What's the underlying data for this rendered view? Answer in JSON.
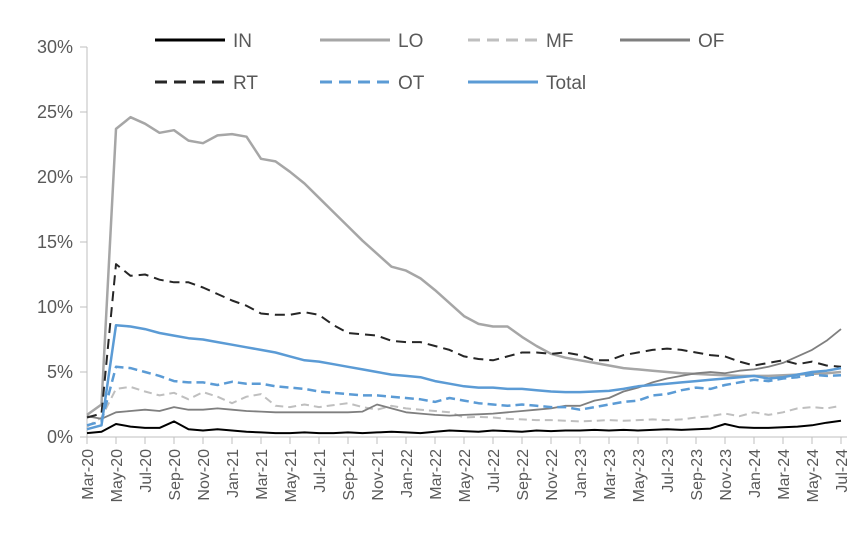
{
  "chart_data": {
    "type": "line",
    "title": "",
    "background": "#ffffff",
    "axis_text_color": "#595959",
    "axis_line_color": "#BFBFBF",
    "y_axis": {
      "min": 0,
      "max": 30,
      "step": 5,
      "unit": "%",
      "tick_labels": [
        "0%",
        "5%",
        "10%",
        "15%",
        "20%",
        "25%",
        "30%"
      ]
    },
    "x_axis": {
      "categories": [
        "Mar-20",
        "Apr-20",
        "May-20",
        "Jun-20",
        "Jul-20",
        "Aug-20",
        "Sep-20",
        "Oct-20",
        "Nov-20",
        "Dec-20",
        "Jan-21",
        "Feb-21",
        "Mar-21",
        "Apr-21",
        "May-21",
        "Jun-21",
        "Jul-21",
        "Aug-21",
        "Sep-21",
        "Oct-21",
        "Nov-21",
        "Dec-21",
        "Jan-22",
        "Feb-22",
        "Mar-22",
        "Apr-22",
        "May-22",
        "Jun-22",
        "Jul-22",
        "Aug-22",
        "Sep-22",
        "Oct-22",
        "Nov-22",
        "Dec-22",
        "Jan-23",
        "Feb-23",
        "Mar-23",
        "Apr-23",
        "May-23",
        "Jun-23",
        "Jul-23",
        "Aug-23",
        "Sep-23",
        "Oct-23",
        "Nov-23",
        "Dec-23",
        "Jan-24",
        "Feb-24",
        "Mar-24",
        "Apr-24",
        "May-24",
        "Jun-24",
        "Jul-24"
      ],
      "shown_tick_labels": [
        "Mar-20",
        "May-20",
        "Jul-20",
        "Sep-20",
        "Nov-20",
        "Jan-21",
        "Mar-21",
        "May-21",
        "Jul-21",
        "Sep-21",
        "Nov-21",
        "Jan-22",
        "Mar-22",
        "May-22",
        "Jul-22",
        "Sep-22",
        "Nov-22",
        "Jan-23",
        "Mar-23",
        "May-23",
        "Jul-23",
        "Sep-23",
        "Nov-23",
        "Jan-24",
        "Mar-24",
        "May-24",
        "Jul-24"
      ],
      "label_rotation_degrees": -90
    },
    "legend": {
      "position": "top",
      "rows": [
        [
          "IN",
          "LO",
          "MF",
          "OF"
        ],
        [
          "RT",
          "OT",
          "Total"
        ]
      ]
    },
    "series": [
      {
        "name": "IN",
        "color": "#000000",
        "dash": "solid",
        "width": 2,
        "values": [
          0.3,
          0.4,
          1.0,
          0.8,
          0.7,
          0.7,
          1.2,
          0.6,
          0.5,
          0.6,
          0.5,
          0.4,
          0.35,
          0.3,
          0.3,
          0.35,
          0.3,
          0.3,
          0.35,
          0.3,
          0.35,
          0.4,
          0.35,
          0.3,
          0.4,
          0.5,
          0.45,
          0.4,
          0.5,
          0.45,
          0.4,
          0.5,
          0.45,
          0.5,
          0.5,
          0.55,
          0.5,
          0.55,
          0.5,
          0.55,
          0.6,
          0.55,
          0.6,
          0.65,
          1.0,
          0.75,
          0.7,
          0.7,
          0.75,
          0.8,
          0.9,
          1.1,
          1.25
        ]
      },
      {
        "name": "LO",
        "color": "#A6A6A6",
        "dash": "solid",
        "width": 2.5,
        "values": [
          1.7,
          2.5,
          23.7,
          24.6,
          24.1,
          23.4,
          23.6,
          22.8,
          22.6,
          23.2,
          23.3,
          23.1,
          21.4,
          21.2,
          20.4,
          19.5,
          18.4,
          17.3,
          16.2,
          15.1,
          14.1,
          13.1,
          12.8,
          12.2,
          11.3,
          10.3,
          9.3,
          8.7,
          8.5,
          8.5,
          7.7,
          7.0,
          6.4,
          6.1,
          5.9,
          5.7,
          5.5,
          5.3,
          5.2,
          5.1,
          5.0,
          4.9,
          4.85,
          4.8,
          4.75,
          4.7,
          4.7,
          4.7,
          4.75,
          4.8,
          4.85,
          4.9,
          5.0
        ]
      },
      {
        "name": "MF",
        "color": "#BFBFBF",
        "dash": "dashed",
        "width": 2,
        "values": [
          0.8,
          1.5,
          3.7,
          3.85,
          3.5,
          3.2,
          3.4,
          2.9,
          3.45,
          3.1,
          2.6,
          3.1,
          3.3,
          2.4,
          2.3,
          2.5,
          2.3,
          2.45,
          2.6,
          2.3,
          2.1,
          2.4,
          2.2,
          2.1,
          2.0,
          1.9,
          1.5,
          1.55,
          1.5,
          1.4,
          1.35,
          1.3,
          1.3,
          1.25,
          1.2,
          1.25,
          1.3,
          1.25,
          1.3,
          1.35,
          1.3,
          1.35,
          1.5,
          1.6,
          1.8,
          1.6,
          1.9,
          1.7,
          1.9,
          2.2,
          2.3,
          2.2,
          2.4
        ]
      },
      {
        "name": "OF",
        "color": "#7F7F7F",
        "dash": "solid",
        "width": 1.8,
        "values": [
          1.6,
          1.4,
          1.9,
          2.0,
          2.1,
          2.0,
          2.3,
          2.1,
          2.1,
          2.2,
          2.1,
          2.0,
          1.95,
          1.9,
          1.9,
          1.9,
          1.9,
          1.9,
          1.9,
          1.95,
          2.5,
          2.2,
          1.9,
          1.8,
          1.7,
          1.65,
          1.7,
          1.75,
          1.8,
          1.9,
          2.0,
          2.1,
          2.2,
          2.4,
          2.4,
          2.8,
          3.0,
          3.5,
          3.8,
          4.2,
          4.5,
          4.7,
          4.9,
          5.0,
          4.9,
          5.1,
          5.2,
          5.4,
          5.7,
          6.2,
          6.7,
          7.4,
          8.3
        ]
      },
      {
        "name": "RT",
        "color": "#262626",
        "dash": "dashed",
        "width": 2,
        "values": [
          1.5,
          1.8,
          13.3,
          12.4,
          12.5,
          12.1,
          11.9,
          11.9,
          11.5,
          11.0,
          10.5,
          10.1,
          9.5,
          9.4,
          9.4,
          9.6,
          9.4,
          8.6,
          8.0,
          7.9,
          7.8,
          7.4,
          7.3,
          7.3,
          7.0,
          6.7,
          6.2,
          6.0,
          5.9,
          6.2,
          6.5,
          6.5,
          6.4,
          6.5,
          6.3,
          5.9,
          5.9,
          6.3,
          6.5,
          6.7,
          6.8,
          6.7,
          6.5,
          6.3,
          6.2,
          5.8,
          5.5,
          5.7,
          5.9,
          5.6,
          5.8,
          5.5,
          5.4
        ]
      },
      {
        "name": "OT",
        "color": "#5B9BD5",
        "dash": "dashed",
        "width": 2.5,
        "values": [
          0.9,
          1.2,
          5.4,
          5.3,
          5.0,
          4.7,
          4.3,
          4.2,
          4.2,
          4.0,
          4.25,
          4.1,
          4.1,
          3.9,
          3.8,
          3.7,
          3.5,
          3.4,
          3.3,
          3.2,
          3.2,
          3.1,
          3.0,
          2.9,
          2.7,
          3.0,
          2.8,
          2.6,
          2.5,
          2.4,
          2.5,
          2.4,
          2.3,
          2.3,
          2.1,
          2.3,
          2.5,
          2.7,
          2.8,
          3.2,
          3.3,
          3.6,
          3.8,
          3.7,
          4.0,
          4.2,
          4.4,
          4.3,
          4.5,
          4.6,
          4.8,
          4.7,
          4.75
        ]
      },
      {
        "name": "Total",
        "color": "#5B9BD5",
        "dash": "solid",
        "width": 2.5,
        "values": [
          0.6,
          0.9,
          8.6,
          8.5,
          8.3,
          8.0,
          7.8,
          7.6,
          7.5,
          7.3,
          7.1,
          6.9,
          6.7,
          6.5,
          6.2,
          5.9,
          5.8,
          5.6,
          5.4,
          5.2,
          5.0,
          4.8,
          4.7,
          4.6,
          4.3,
          4.1,
          3.9,
          3.8,
          3.8,
          3.7,
          3.7,
          3.6,
          3.5,
          3.45,
          3.45,
          3.5,
          3.55,
          3.7,
          3.9,
          4.0,
          4.1,
          4.2,
          4.3,
          4.4,
          4.5,
          4.6,
          4.7,
          4.5,
          4.6,
          4.8,
          5.0,
          5.1,
          5.3
        ]
      }
    ]
  }
}
